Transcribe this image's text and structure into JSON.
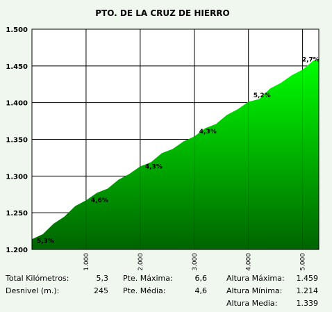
{
  "chart_data": {
    "type": "area",
    "title": "PTO. DE LA CRUZ DE HIERRO",
    "xlim": [
      0,
      5300
    ],
    "ylim": [
      1200,
      1500
    ],
    "x_ticks": [
      1000,
      2000,
      3000,
      4000,
      5000
    ],
    "x_tick_labels": [
      "1.000",
      "2.000",
      "3.000",
      "4.000",
      "5.000"
    ],
    "y_ticks": [
      1200,
      1250,
      1300,
      1350,
      1400,
      1450,
      1500
    ],
    "y_tick_labels": [
      "1.200",
      "1.250",
      "1.300",
      "1.350",
      "1.400",
      "1.450",
      "1.500"
    ],
    "grid": true,
    "fill_colors": {
      "top": "#00ff00",
      "bottom": "#006400"
    },
    "profile": {
      "x": [
        0,
        200,
        400,
        600,
        800,
        1000,
        1200,
        1400,
        1600,
        1800,
        2000,
        2200,
        2400,
        2600,
        2800,
        3000,
        3200,
        3400,
        3600,
        3800,
        4000,
        4200,
        4400,
        4600,
        4800,
        5000,
        5200,
        5300
      ],
      "y": [
        1214,
        1222,
        1234,
        1246,
        1258,
        1268,
        1276,
        1284,
        1294,
        1304,
        1312,
        1320,
        1330,
        1338,
        1346,
        1355,
        1364,
        1372,
        1382,
        1392,
        1400,
        1406,
        1418,
        1428,
        1436,
        1446,
        1456,
        1459
      ]
    },
    "segment_labels": [
      {
        "text": "5,3%",
        "x": 250,
        "y": 1213
      },
      {
        "text": "4,6%",
        "x": 1250,
        "y": 1268
      },
      {
        "text": "4,3%",
        "x": 2250,
        "y": 1314
      },
      {
        "text": "4,3%",
        "x": 3250,
        "y": 1362
      },
      {
        "text": "5,2%",
        "x": 4250,
        "y": 1411
      },
      {
        "text": "2,7%",
        "x": 5150,
        "y": 1460
      }
    ]
  },
  "stats": {
    "total_km_label": "Total Kilómetros:",
    "total_km_value": "5,3",
    "desnivel_label": "Desnivel (m.):",
    "desnivel_value": "245",
    "pte_max_label": "Pte. Máxima:",
    "pte_max_value": "6,6",
    "pte_media_label": "Pte. Média:",
    "pte_media_value": "4,6",
    "alt_max_label": "Altura Máxima:",
    "alt_max_value": "1.459",
    "alt_min_label": "Altura Mínima:",
    "alt_min_value": "1.214",
    "alt_media_label": "Altura Media:",
    "alt_media_value": "1.339"
  }
}
